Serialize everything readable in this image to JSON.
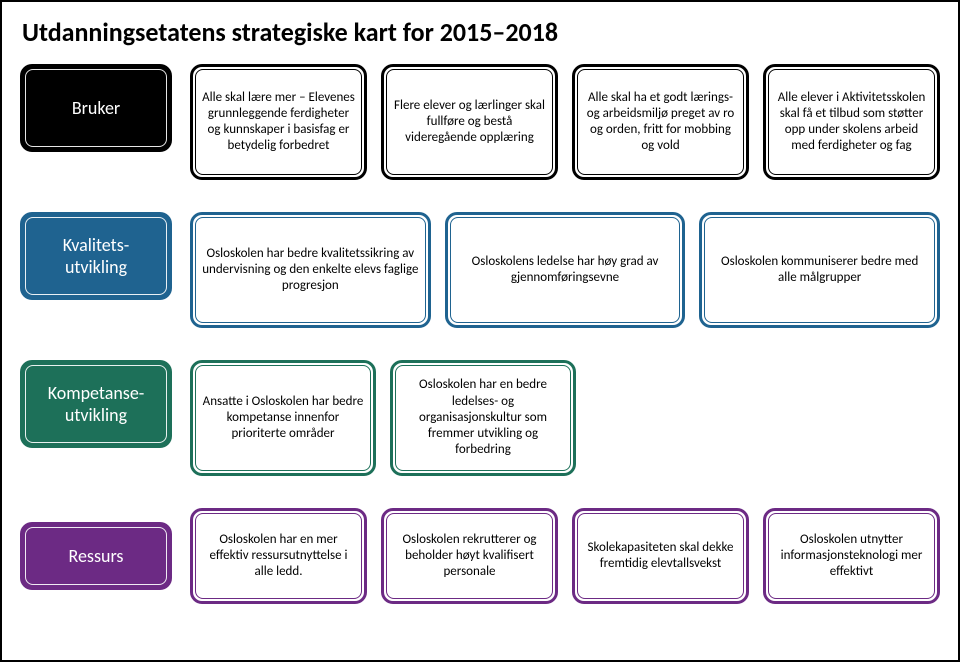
{
  "title": "Utdanningsetatens strategiske kart for 2015–2018",
  "rows": [
    {
      "id": "bruker",
      "label": "Bruker",
      "cat_bg": "#000000",
      "card_border": "#000000",
      "cards": [
        "Alle skal lære mer – Elevenes grunnleggende ferdigheter og kunnskaper i basisfag er betydelig forbedret",
        "Flere elever og lærlinger skal fullføre og bestå videregående opplæring",
        "Alle skal ha et godt lærings- og arbeidsmiljø preget av ro og orden, fritt for mobbing og vold",
        "Alle elever i Aktivitetsskolen skal få et tilbud som støtter opp under skolens arbeid med ferdigheter og fag"
      ]
    },
    {
      "id": "kval",
      "label": "Kvalitets-\nutvikling",
      "cat_bg": "#1f6390",
      "card_border": "#1f6390",
      "cards": [
        "Osloskolen har bedre kvalitetssikring av undervisning og den enkelte elevs faglige progresjon",
        "Osloskolens ledelse har høy grad av gjennomføringsevne",
        "Osloskolen kommuniserer bedre med alle målgrupper"
      ]
    },
    {
      "id": "komp",
      "label": "Kompetanse-\nutvikling",
      "cat_bg": "#1d7059",
      "card_border": "#1d7059",
      "cards": [
        "Ansatte i Osloskolen har bedre kompetanse innenfor prioriterte områder",
        "Osloskolen har en bedre ledelses- og organisasjonskultur som fremmer utvikling og forbedring"
      ]
    },
    {
      "id": "ressurs",
      "label": "Ressurs",
      "cat_bg": "#6c2a84",
      "card_border": "#6c2a84",
      "cards": [
        "Osloskolen har en mer effektiv ressursutnyttelse i alle ledd.",
        "Osloskolen rekrutterer og beholder høyt kvalifisert personale",
        "Skolekapasiteten skal dekke fremtidig elevtallsvekst",
        "Osloskolen utnytter informasjonsteknologi mer effektivt"
      ]
    }
  ]
}
